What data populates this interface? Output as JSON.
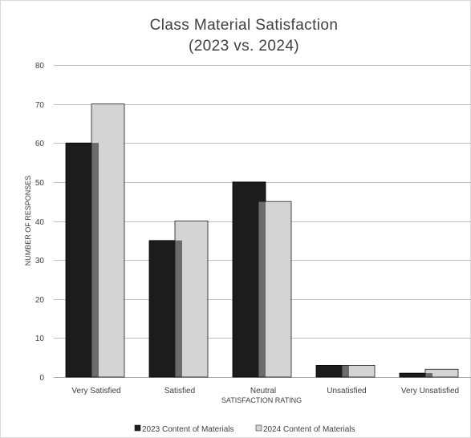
{
  "chart_data": {
    "type": "bar",
    "title_line1": "Class Material Satisfaction",
    "title_line2": "(2023 vs. 2024)",
    "xlabel": "SATISFACTION RATING",
    "ylabel": "NUMBER OF RESPONSES",
    "ylim": [
      0,
      80
    ],
    "yticks": [
      "0",
      "10",
      "20",
      "30",
      "40",
      "50",
      "60",
      "70",
      "80"
    ],
    "grid": "horizontal",
    "legend_position": "bottom",
    "categories": [
      "Very Satisfied",
      "Satisfied",
      "Neutral",
      "Unsatisfied",
      "Very Unsatisfied"
    ],
    "series": [
      {
        "name": "2023 Content of Materials",
        "values": [
          60,
          35,
          50,
          3,
          1
        ],
        "color": "#1c1c1c"
      },
      {
        "name": "2024 Content of Materials",
        "values": [
          70,
          40,
          45,
          3,
          2
        ],
        "color": "#d4d4d4"
      }
    ],
    "overlap_color": "#6b6b6b",
    "gridline_color": "#c0c0c0",
    "border_color": "#d9d9d9"
  }
}
